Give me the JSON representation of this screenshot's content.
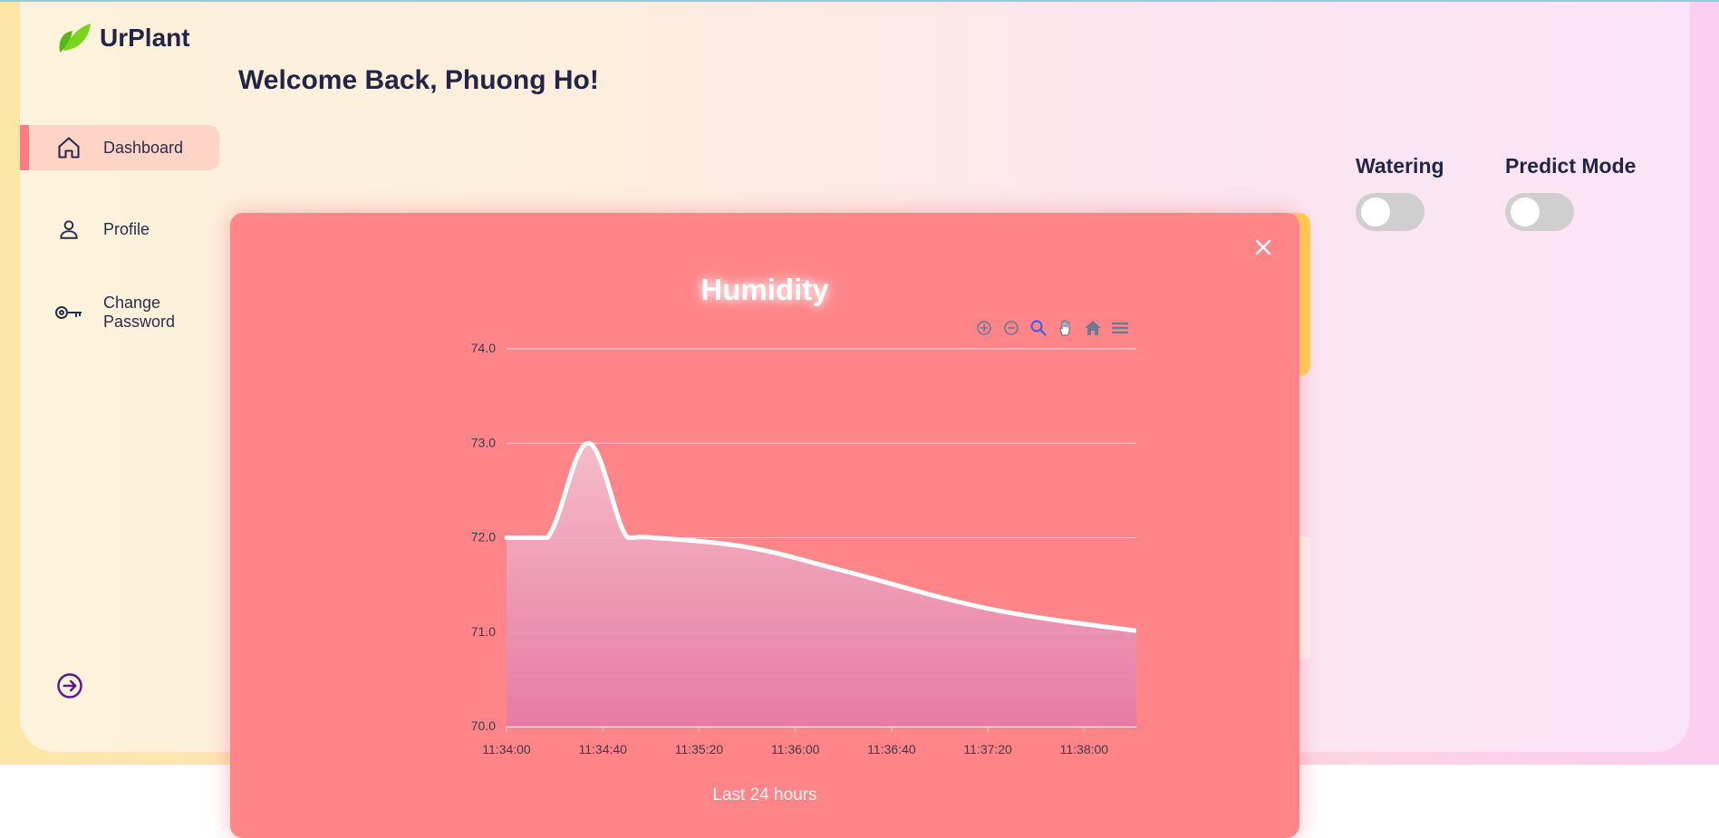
{
  "app": {
    "name": "UrPlant"
  },
  "sidebar": {
    "items": [
      {
        "label": "Dashboard",
        "icon": "home-icon",
        "active": true
      },
      {
        "label": "Profile",
        "icon": "user-icon",
        "active": false
      },
      {
        "label": "Change Password",
        "icon": "key-icon",
        "active": false
      }
    ],
    "logout_icon": "logout-icon"
  },
  "header": {
    "welcome": "Welcome Back, Phuong Ho!"
  },
  "controls": {
    "watering": {
      "label": "Watering",
      "on": false
    },
    "predict": {
      "label": "Predict Mode",
      "on": false
    }
  },
  "modal": {
    "title": "Humidity",
    "footer": "Last 24 hours",
    "close_icon": "close-icon",
    "toolbar": [
      "zoom-in-icon",
      "zoom-out-icon",
      "selection-zoom-icon",
      "pan-icon",
      "reset-home-icon",
      "menu-icon"
    ]
  },
  "colors": {
    "modal_bg": "#ff8589",
    "accent": "#ff7b84",
    "toggle_off": "#cfcfcf",
    "card_yellow": "#fcd34a"
  },
  "chart_data": {
    "type": "area",
    "title": "Humidity",
    "xlabel": "",
    "ylabel": "",
    "ylim": [
      70.0,
      74.0
    ],
    "y_ticks": [
      "70.0",
      "71.0",
      "72.0",
      "73.0",
      "74.0"
    ],
    "x_ticks": [
      "11:34:00",
      "11:34:40",
      "11:35:20",
      "11:36:00",
      "11:36:40",
      "11:37:20",
      "11:38:00"
    ],
    "x_range_seconds": [
      0,
      273
    ],
    "x": [
      0,
      17,
      34,
      51,
      61,
      100,
      140,
      200,
      260,
      273
    ],
    "y": [
      72.0,
      72.0,
      73.0,
      72.0,
      72.0,
      71.9,
      71.65,
      71.25,
      71.02,
      71.0
    ],
    "grid": true,
    "legend": "none"
  }
}
